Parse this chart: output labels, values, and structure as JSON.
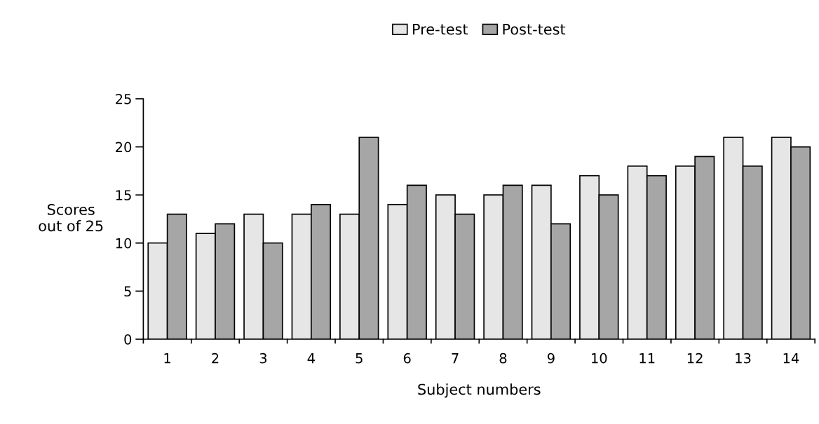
{
  "chart_data": {
    "type": "bar",
    "xlabel": "Subject numbers",
    "ylabel": "Scores\nout of 25",
    "categories": [
      "1",
      "2",
      "3",
      "4",
      "5",
      "6",
      "7",
      "8",
      "9",
      "10",
      "11",
      "12",
      "13",
      "14"
    ],
    "series": [
      {
        "name": "Pre-test",
        "color": "#e6e6e6",
        "values": [
          10,
          11,
          13,
          13,
          13,
          14,
          15,
          15,
          16,
          17,
          18,
          18,
          21,
          21
        ]
      },
      {
        "name": "Post-test",
        "color": "#a6a6a6",
        "values": [
          13,
          12,
          10,
          14,
          21,
          16,
          13,
          16,
          12,
          15,
          17,
          19,
          18,
          20
        ]
      }
    ],
    "ylim": [
      0,
      25
    ],
    "yticks": [
      0,
      5,
      10,
      15,
      20,
      25
    ],
    "grid": false,
    "legend": "top"
  }
}
